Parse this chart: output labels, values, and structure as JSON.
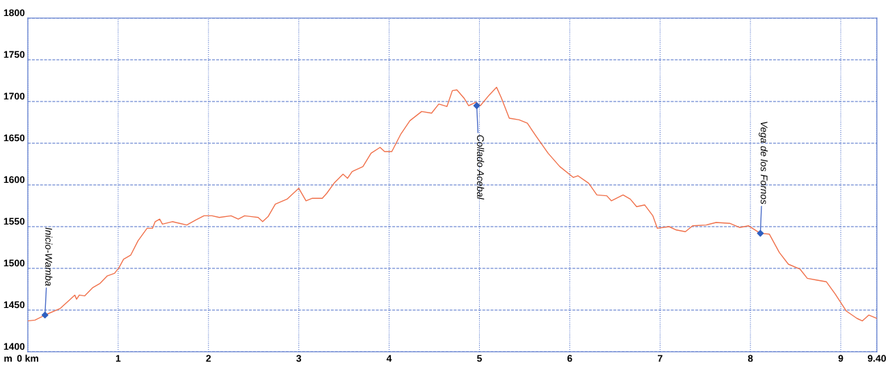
{
  "chart_data": {
    "type": "line",
    "ylabel": "m",
    "xlim": [
      0,
      9.4
    ],
    "ylim": [
      1400,
      1800
    ],
    "xticks": [
      {
        "value": 0,
        "label": "0 km"
      },
      1,
      2,
      3,
      4,
      5,
      6,
      7,
      8,
      9,
      {
        "value": 9.4,
        "label": "9.40"
      }
    ],
    "yticks": [
      1400,
      1450,
      1500,
      1550,
      1600,
      1650,
      1700,
      1750,
      1800
    ],
    "grid": true,
    "legend": false,
    "series": [
      {
        "color": "#f0704a",
        "marker": "none",
        "x": [
          0,
          0.08,
          0.21,
          0.36,
          0.47,
          0.52,
          0.54,
          0.57,
          0.63,
          0.72,
          0.8,
          0.88,
          0.96,
          1.01,
          1.06,
          1.14,
          1.22,
          1.32,
          1.38,
          1.41,
          1.46,
          1.49,
          1.6,
          1.68,
          1.76,
          1.86,
          1.95,
          2.04,
          2.12,
          2.25,
          2.33,
          2.4,
          2.48,
          2.55,
          2.6,
          2.66,
          2.74,
          2.87,
          3.0,
          3.08,
          3.15,
          3.26,
          3.31,
          3.39,
          3.49,
          3.54,
          3.59,
          3.71,
          3.8,
          3.9,
          3.95,
          4.03,
          4.13,
          4.23,
          4.36,
          4.47,
          4.55,
          4.64,
          4.7,
          4.75,
          4.83,
          4.88,
          4.96,
          5.01,
          5.11,
          5.19,
          5.24,
          5.33,
          5.44,
          5.53,
          5.63,
          5.76,
          5.89,
          6.04,
          6.09,
          6.21,
          6.3,
          6.41,
          6.46,
          6.59,
          6.67,
          6.74,
          6.83,
          6.92,
          6.97,
          7.1,
          7.18,
          7.28,
          7.36,
          7.51,
          7.62,
          7.77,
          7.88,
          7.98,
          8.11,
          8.21,
          8.32,
          8.42,
          8.55,
          8.63,
          8.73,
          8.84,
          8.94,
          9.06,
          9.18,
          9.24,
          9.31,
          9.4
        ],
        "values": [
          1437,
          1438,
          1445,
          1452,
          1463,
          1468,
          1463,
          1468,
          1467,
          1477,
          1482,
          1491,
          1494,
          1501,
          1511,
          1516,
          1533,
          1548,
          1548,
          1556,
          1559,
          1553,
          1556,
          1554,
          1552,
          1558,
          1563,
          1563,
          1561,
          1563,
          1559,
          1563,
          1562,
          1561,
          1556,
          1562,
          1577,
          1583,
          1596,
          1581,
          1584,
          1584,
          1590,
          1602,
          1613,
          1608,
          1616,
          1622,
          1638,
          1645,
          1640,
          1640,
          1661,
          1677,
          1688,
          1686,
          1697,
          1694,
          1713,
          1714,
          1704,
          1695,
          1699,
          1695,
          1708,
          1717,
          1705,
          1680,
          1678,
          1674,
          1658,
          1638,
          1622,
          1609,
          1611,
          1602,
          1588,
          1587,
          1581,
          1588,
          1583,
          1574,
          1576,
          1563,
          1548,
          1550,
          1546,
          1544,
          1551,
          1552,
          1555,
          1554,
          1549,
          1551,
          1542,
          1541,
          1519,
          1505,
          1499,
          1488,
          1486,
          1484,
          1469,
          1449,
          1440,
          1437,
          1444,
          1440
        ]
      },
      {
        "type": "scatter",
        "color": "#3060c0",
        "marker": "diamond",
        "x": [
          0.19,
          4.97,
          8.11
        ],
        "values": [
          1444,
          1695,
          1542
        ]
      }
    ],
    "annotations": [
      {
        "text": "Inicio-Wamba",
        "x": 0.19,
        "y": 1444
      },
      {
        "text": "Collado Acebal",
        "x": 4.97,
        "y": 1695
      },
      {
        "text": "Vega de los Fornos",
        "x": 8.11,
        "y": 1542
      }
    ]
  }
}
